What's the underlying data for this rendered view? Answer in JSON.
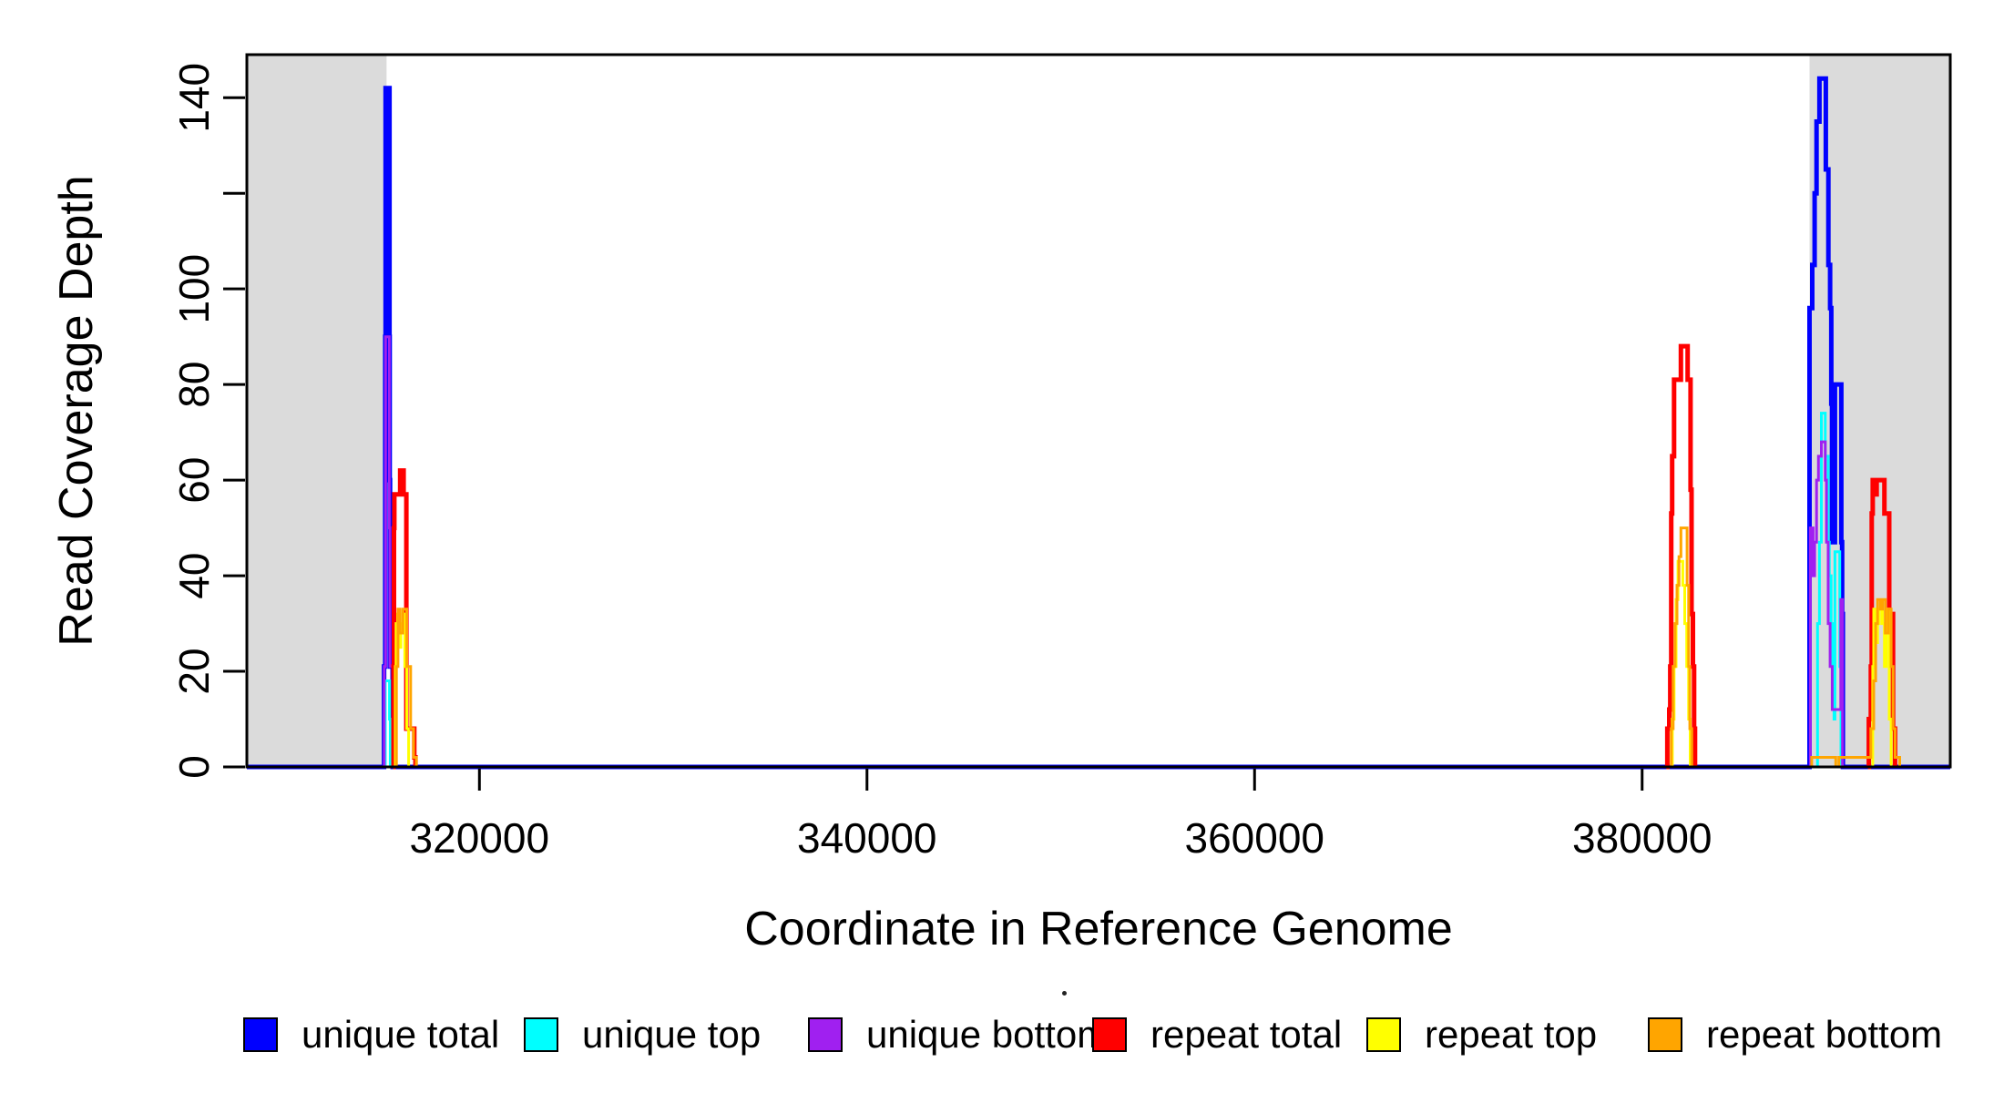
{
  "figure": {
    "y_axis_title": "Read Coverage Depth",
    "x_axis_title": "Coordinate in Reference Genome"
  },
  "legend": {
    "items": [
      {
        "label": "unique total",
        "color": "#0000FF"
      },
      {
        "label": "unique top",
        "color": "#00FFFF"
      },
      {
        "label": "unique bottom",
        "color": "#A020F0"
      },
      {
        "label": "repeat total",
        "color": "#FF0000"
      },
      {
        "label": "repeat top",
        "color": "#FFFF00"
      },
      {
        "label": "repeat bottom",
        "color": "#FFA500"
      }
    ]
  },
  "chart_data": {
    "type": "line",
    "line_style": "step",
    "title": "",
    "xlabel": "Coordinate in Reference Genome",
    "ylabel": "Read Coverage Depth",
    "xlim": [
      308000,
      395900
    ],
    "ylim": [
      0,
      149
    ],
    "grid": false,
    "legend_position": "bottom",
    "background_color": "#FFFFFF",
    "x_ticks": [
      {
        "value": 320000,
        "label": "320000"
      },
      {
        "value": 340000,
        "label": "340000"
      },
      {
        "value": 360000,
        "label": "360000"
      },
      {
        "value": 380000,
        "label": "380000"
      }
    ],
    "y_ticks": [
      {
        "value": 0,
        "label": "0"
      },
      {
        "value": 20,
        "label": "20"
      },
      {
        "value": 40,
        "label": "40"
      },
      {
        "value": 60,
        "label": "60"
      },
      {
        "value": 80,
        "label": "80"
      },
      {
        "value": 100,
        "label": "100"
      },
      {
        "value": 120,
        "label": ""
      },
      {
        "value": 140,
        "label": "140"
      }
    ],
    "shaded_regions": [
      {
        "x0": 308000,
        "x1": 315210,
        "color": "#DBDBDB"
      },
      {
        "x0": 388640,
        "x1": 395900,
        "color": "#DBDBDB"
      }
    ],
    "series": [
      {
        "name": "unique total",
        "color": "#0000FF",
        "line_width": 5,
        "segments": [
          [
            [
              308000,
              0
            ],
            [
              315050,
              0
            ],
            [
              315080,
              21
            ],
            [
              315120,
              21
            ],
            [
              315140,
              90
            ],
            [
              315160,
              142
            ],
            [
              315340,
              142
            ],
            [
              315360,
              90
            ],
            [
              315370,
              60
            ],
            [
              315390,
              21
            ],
            [
              315480,
              21
            ],
            [
              315520,
              0
            ],
            [
              388600,
              0
            ],
            [
              388640,
              96
            ],
            [
              388700,
              96
            ],
            [
              388780,
              105
            ],
            [
              388900,
              120
            ],
            [
              389000,
              135
            ],
            [
              389100,
              135
            ],
            [
              389150,
              144
            ],
            [
              389430,
              144
            ],
            [
              389480,
              125
            ],
            [
              389560,
              125
            ],
            [
              389610,
              105
            ],
            [
              389700,
              96
            ],
            [
              389760,
              76
            ],
            [
              389800,
              47
            ],
            [
              389900,
              47
            ],
            [
              389950,
              80
            ],
            [
              390230,
              80
            ],
            [
              390280,
              47
            ],
            [
              390320,
              32
            ],
            [
              390360,
              0
            ],
            [
              395900,
              0
            ]
          ]
        ]
      },
      {
        "name": "unique top",
        "color": "#00FFFF",
        "line_width": 3,
        "segments": [
          [
            [
              308000,
              0
            ],
            [
              315120,
              0
            ],
            [
              315140,
              18
            ],
            [
              315320,
              18
            ],
            [
              315360,
              10
            ],
            [
              315400,
              0
            ],
            [
              389000,
              0
            ],
            [
              389050,
              30
            ],
            [
              389150,
              47
            ],
            [
              389250,
              74
            ],
            [
              389400,
              74
            ],
            [
              389450,
              65
            ],
            [
              389550,
              65
            ],
            [
              389600,
              47
            ],
            [
              389660,
              40
            ],
            [
              389750,
              30
            ],
            [
              389810,
              21
            ],
            [
              389900,
              10
            ],
            [
              389950,
              45
            ],
            [
              390150,
              45
            ],
            [
              390200,
              21
            ],
            [
              390260,
              0
            ],
            [
              395900,
              0
            ]
          ]
        ]
      },
      {
        "name": "unique bottom",
        "color": "#A020F0",
        "line_width": 3,
        "segments": [
          [
            [
              308000,
              0
            ],
            [
              315060,
              0
            ],
            [
              315090,
              21
            ],
            [
              315140,
              21
            ],
            [
              315160,
              90
            ],
            [
              315330,
              90
            ],
            [
              315350,
              50
            ],
            [
              315380,
              21
            ],
            [
              315560,
              21
            ],
            [
              315600,
              0
            ],
            [
              388640,
              0
            ],
            [
              388680,
              50
            ],
            [
              388760,
              50
            ],
            [
              388820,
              40
            ],
            [
              388900,
              47
            ],
            [
              389000,
              60
            ],
            [
              389100,
              65
            ],
            [
              389250,
              68
            ],
            [
              389400,
              68
            ],
            [
              389450,
              60
            ],
            [
              389510,
              47
            ],
            [
              389600,
              30
            ],
            [
              389700,
              21
            ],
            [
              389810,
              12
            ],
            [
              390200,
              12
            ],
            [
              390250,
              35
            ],
            [
              390310,
              35
            ],
            [
              390340,
              0
            ],
            [
              395900,
              0
            ]
          ]
        ]
      },
      {
        "name": "repeat total",
        "color": "#FF0000",
        "line_width": 5,
        "segments": [
          [
            [
              315550,
              0
            ],
            [
              315570,
              21
            ],
            [
              315590,
              50
            ],
            [
              315610,
              57
            ],
            [
              315890,
              57
            ],
            [
              315910,
              62
            ],
            [
              316070,
              62
            ],
            [
              316090,
              57
            ],
            [
              316210,
              57
            ],
            [
              316230,
              8
            ],
            [
              316580,
              8
            ],
            [
              316640,
              2
            ],
            [
              316700,
              0
            ]
          ],
          [
            [
              381250,
              0
            ],
            [
              381300,
              8
            ],
            [
              381400,
              12
            ],
            [
              381450,
              21
            ],
            [
              381500,
              53
            ],
            [
              381550,
              65
            ],
            [
              381650,
              81
            ],
            [
              381950,
              81
            ],
            [
              382000,
              88
            ],
            [
              382300,
              88
            ],
            [
              382350,
              81
            ],
            [
              382450,
              81
            ],
            [
              382500,
              58
            ],
            [
              382550,
              32
            ],
            [
              382620,
              21
            ],
            [
              382680,
              8
            ],
            [
              382730,
              0
            ]
          ],
          [
            [
              391650,
              0
            ],
            [
              391700,
              10
            ],
            [
              391760,
              10
            ],
            [
              391800,
              21
            ],
            [
              391850,
              53
            ],
            [
              391900,
              60
            ],
            [
              392000,
              57
            ],
            [
              392100,
              60
            ],
            [
              392450,
              60
            ],
            [
              392500,
              53
            ],
            [
              392700,
              53
            ],
            [
              392750,
              32
            ],
            [
              392900,
              32
            ],
            [
              392950,
              8
            ],
            [
              393050,
              0
            ]
          ]
        ]
      },
      {
        "name": "repeat top",
        "color": "#FFFF00",
        "line_width": 3,
        "segments": [
          [
            [
              315640,
              0
            ],
            [
              315660,
              21
            ],
            [
              315700,
              30
            ],
            [
              315780,
              32
            ],
            [
              315850,
              25
            ],
            [
              315950,
              30
            ],
            [
              316050,
              32
            ],
            [
              316150,
              21
            ],
            [
              316250,
              8
            ],
            [
              316350,
              0
            ]
          ],
          [
            [
              381500,
              0
            ],
            [
              381560,
              10
            ],
            [
              381650,
              21
            ],
            [
              381750,
              35
            ],
            [
              381850,
              43
            ],
            [
              382000,
              43
            ],
            [
              382100,
              38
            ],
            [
              382200,
              30
            ],
            [
              382300,
              21
            ],
            [
              382400,
              10
            ],
            [
              382480,
              0
            ]
          ],
          [
            [
              391850,
              0
            ],
            [
              391900,
              21
            ],
            [
              391950,
              33
            ],
            [
              392050,
              26
            ],
            [
              392150,
              30
            ],
            [
              392250,
              33
            ],
            [
              392400,
              30
            ],
            [
              392500,
              21
            ],
            [
              392600,
              33
            ],
            [
              392750,
              10
            ],
            [
              392850,
              0
            ]
          ]
        ]
      },
      {
        "name": "repeat bottom",
        "color": "#FFA500",
        "line_width": 3,
        "segments": [
          [
            [
              315680,
              0
            ],
            [
              315720,
              21
            ],
            [
              315800,
              33
            ],
            [
              315900,
              28
            ],
            [
              316050,
              33
            ],
            [
              316250,
              21
            ],
            [
              316450,
              8
            ],
            [
              316600,
              2
            ],
            [
              316750,
              0
            ]
          ],
          [
            [
              381400,
              0
            ],
            [
              381500,
              8
            ],
            [
              381600,
              21
            ],
            [
              381700,
              30
            ],
            [
              381800,
              38
            ],
            [
              381900,
              44
            ],
            [
              382000,
              50
            ],
            [
              382250,
              50
            ],
            [
              382320,
              38
            ],
            [
              382400,
              21
            ],
            [
              382460,
              8
            ],
            [
              382560,
              0
            ]
          ],
          [
            [
              388700,
              0
            ],
            [
              388750,
              2
            ],
            [
              389940,
              2
            ],
            [
              389990,
              0
            ],
            [
              390100,
              0
            ],
            [
              390150,
              2
            ],
            [
              391750,
              2
            ],
            [
              391800,
              8
            ],
            [
              391950,
              18
            ],
            [
              392050,
              30
            ],
            [
              392150,
              35
            ],
            [
              392300,
              33
            ],
            [
              392400,
              35
            ],
            [
              392550,
              28
            ],
            [
              392700,
              33
            ],
            [
              392850,
              21
            ],
            [
              392950,
              8
            ],
            [
              393050,
              2
            ],
            [
              393290,
              0
            ]
          ]
        ]
      }
    ]
  }
}
